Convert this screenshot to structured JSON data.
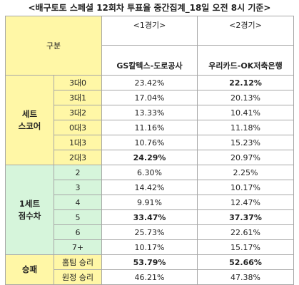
{
  "title": "<배구토토 스페셜 12회차 투표율 중간집계_18일 오전 8시 기준>",
  "header": {
    "corner": "구분",
    "game1": {
      "sub": "<1경기>",
      "name": "GS칼텍스-도로공사"
    },
    "game2": {
      "sub": "<2경기>",
      "name": "우리카드-OK저축은행"
    }
  },
  "groups": {
    "g1": {
      "line1": "세트",
      "line2": "스코어"
    },
    "g2": {
      "line1": "1세트",
      "line2": "점수차"
    },
    "g3": {
      "label": "승패"
    }
  },
  "rows": [
    {
      "label": "3대0",
      "v1": "23.42%",
      "v2": "22.12%"
    },
    {
      "label": "3대1",
      "v1": "17.04%",
      "v2": "20.13%"
    },
    {
      "label": "3대2",
      "v1": "13.33%",
      "v2": "10.41%"
    },
    {
      "label": "0대3",
      "v1": "11.16%",
      "v2": "11.18%"
    },
    {
      "label": "1대3",
      "v1": "10.76%",
      "v2": "15.23%"
    },
    {
      "label": "2대3",
      "v1": "24.29%",
      "v2": "20.97%"
    },
    {
      "label": "2",
      "v1": "6.30%",
      "v2": "2.25%"
    },
    {
      "label": "3",
      "v1": "14.42%",
      "v2": "10.17%"
    },
    {
      "label": "4",
      "v1": "9.91%",
      "v2": "12.47%"
    },
    {
      "label": "5",
      "v1": "33.47%",
      "v2": "37.37%"
    },
    {
      "label": "6",
      "v1": "25.73%",
      "v2": "22.61%"
    },
    {
      "label": "7+",
      "v1": "10.17%",
      "v2": "15.17%"
    },
    {
      "label": "홈팀 승리",
      "v1": "53.79%",
      "v2": "52.66%"
    },
    {
      "label": "원정 승리",
      "v1": "46.21%",
      "v2": "47.38%"
    }
  ],
  "colors": {
    "yellow": "#fff7a6",
    "green": "#d6f5db",
    "border": "#a7a7a7"
  }
}
